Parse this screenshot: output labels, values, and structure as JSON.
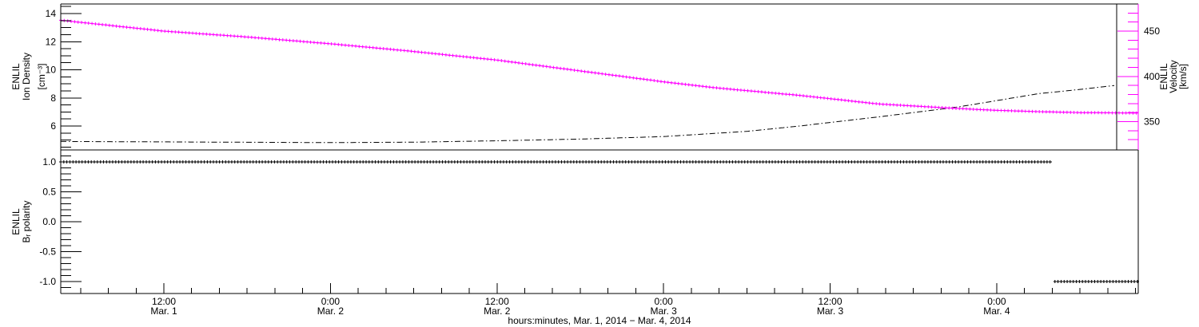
{
  "page": {
    "background": "#ffffff"
  },
  "colors": {
    "axis_black": "#000000",
    "velocity_magenta": "#ff00ff",
    "background": "#ffffff"
  },
  "chart_data": {
    "type": "line",
    "title": "",
    "x_axis": {
      "label": "hours:minutes, Mar.  1, 2014 − Mar.  4, 2014",
      "start_hours_from_mar1_0000": 4.57,
      "end_hours_from_mar1_0000": 82.2,
      "minor_tick_step_hours": 2,
      "major_ticks": [
        {
          "hours": 12,
          "time": "12:00",
          "date": "Mar. 1"
        },
        {
          "hours": 24,
          "time": "0:00",
          "date": "Mar. 2"
        },
        {
          "hours": 36,
          "time": "12:00",
          "date": "Mar. 2"
        },
        {
          "hours": 48,
          "time": "0:00",
          "date": "Mar. 3"
        },
        {
          "hours": 60,
          "time": "12:00",
          "date": "Mar. 3"
        },
        {
          "hours": 72,
          "time": "0:00",
          "date": "Mar. 4"
        }
      ]
    },
    "panels": [
      {
        "name": "density-velocity",
        "left_axis": {
          "title_lines": [
            "ENLIL",
            "Ion Density",
            "[cm⁻³]"
          ],
          "major_ticks": [
            6,
            8,
            10,
            12,
            14
          ],
          "minor_step": 0.5,
          "range": [
            4.3,
            14.7
          ],
          "color": "#000000"
        },
        "right_axis": {
          "title_lines": [
            "ENLIL",
            "Velocity",
            "[km/s]"
          ],
          "major_ticks": [
            350,
            400,
            450
          ],
          "minor_step": 10,
          "range": [
            319,
            480
          ],
          "color": "#ff00ff",
          "title_color": "#000000"
        },
        "series": [
          {
            "name": "ion-density",
            "axis": "left",
            "color": "#000000",
            "line_style": "dash-dot",
            "points": [
              [
                4.57,
                4.9
              ],
              [
                12,
                4.87
              ],
              [
                24,
                4.82
              ],
              [
                30,
                4.85
              ],
              [
                36,
                4.95
              ],
              [
                42,
                5.07
              ],
              [
                48,
                5.25
              ],
              [
                54,
                5.62
              ],
              [
                57.8,
                6.0
              ],
              [
                63.5,
                6.65
              ],
              [
                69.2,
                7.35
              ],
              [
                75,
                8.3
              ],
              [
                78,
                8.6
              ],
              [
                80.6,
                8.9
              ]
            ]
          },
          {
            "name": "velocity",
            "axis": "right",
            "color": "#ff00ff",
            "marker": "plus",
            "points": [
              [
                4.57,
                462
              ],
              [
                12,
                450
              ],
              [
                18,
                443.5
              ],
              [
                24,
                436
              ],
              [
                30,
                427.5
              ],
              [
                36,
                418
              ],
              [
                42,
                406
              ],
              [
                48,
                394
              ],
              [
                52,
                387
              ],
              [
                57.8,
                379
              ],
              [
                63.5,
                369.5
              ],
              [
                69.2,
                364.5
              ],
              [
                72,
                362.5
              ],
              [
                75,
                361
              ],
              [
                78,
                360
              ],
              [
                82.2,
                359.5
              ]
            ]
          }
        ]
      },
      {
        "name": "br-polarity",
        "left_axis": {
          "title_lines": [
            "ENLIL",
            "Bᵣ polarity"
          ],
          "major_ticks": [
            -1.0,
            -0.5,
            0.0,
            0.5,
            1.0
          ],
          "minor_step": 0.1,
          "range": [
            -1.2,
            1.2
          ],
          "color": "#000000"
        },
        "series": [
          {
            "name": "br-polarity",
            "color": "#000000",
            "marker": "plus",
            "segments": [
              {
                "from_hours": 4.57,
                "to_hours": 75.98,
                "value": 1.0
              },
              {
                "from_hours": 76.2,
                "to_hours": 82.2,
                "value": -1.0
              }
            ]
          }
        ]
      }
    ]
  }
}
